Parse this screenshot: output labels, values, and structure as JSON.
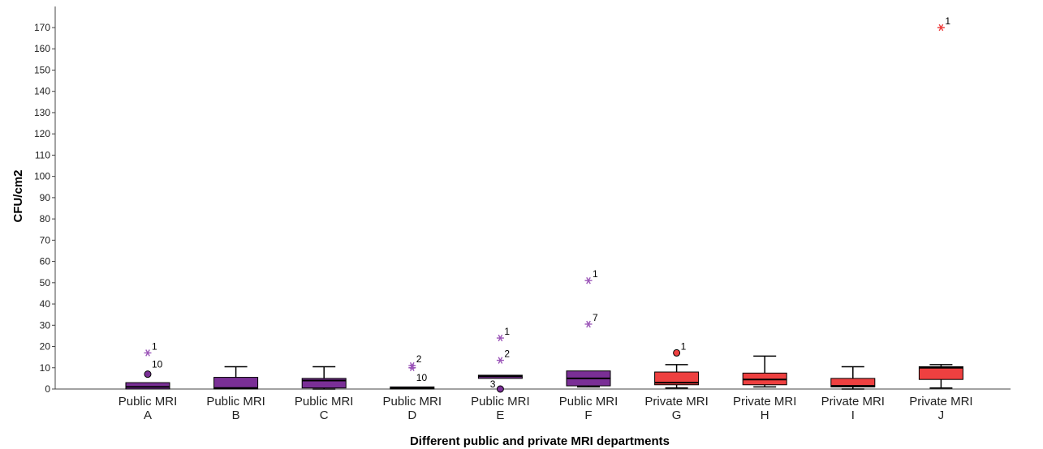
{
  "chart_data": {
    "type": "boxplot",
    "xlabel": "Different public and private MRI departments",
    "ylabel": "CFU/cm2",
    "ylim": [
      0,
      175
    ],
    "yticks": [
      0,
      10,
      20,
      30,
      40,
      50,
      60,
      70,
      80,
      90,
      100,
      110,
      120,
      130,
      140,
      150,
      160,
      170
    ],
    "grid": false,
    "colors": {
      "public": "#7a2f96",
      "private": "#ee4040",
      "public_star": "#9b55b8",
      "private_star": "#ee4040"
    },
    "categories": [
      {
        "line1": "Public MRI",
        "line2": "A",
        "group": "public",
        "min": 0,
        "q1": 0,
        "median": 1,
        "q3": 3,
        "max": 3,
        "outliers": [
          {
            "value": 17,
            "label": "1",
            "shape": "star"
          },
          {
            "value": 7,
            "label": "10",
            "shape": "circle"
          }
        ]
      },
      {
        "line1": "Public MRI",
        "line2": "B",
        "group": "public",
        "min": 0,
        "q1": 0,
        "median": 0.5,
        "q3": 5.5,
        "max": 10.5,
        "outliers": []
      },
      {
        "line1": "Public MRI",
        "line2": "C",
        "group": "public",
        "min": 0,
        "q1": 0.5,
        "median": 4,
        "q3": 5,
        "max": 10.5,
        "outliers": []
      },
      {
        "line1": "Public MRI",
        "line2": "D",
        "group": "public",
        "min": 0,
        "q1": 0,
        "median": 0.5,
        "q3": 1,
        "max": 1,
        "outliers": [
          {
            "value": 11,
            "label": "2",
            "shape": "star"
          },
          {
            "value": 10,
            "label": "10",
            "shape": "star"
          }
        ]
      },
      {
        "line1": "Public MRI",
        "line2": "E",
        "group": "public",
        "min": 5,
        "q1": 5,
        "median": 6,
        "q3": 6.5,
        "max": 6.5,
        "outliers": [
          {
            "value": 24,
            "label": "1",
            "shape": "star"
          },
          {
            "value": 13.5,
            "label": "2",
            "shape": "star"
          },
          {
            "value": 0,
            "label": "3",
            "shape": "circle"
          }
        ]
      },
      {
        "line1": "Public MRI",
        "line2": "F",
        "group": "public",
        "min": 1,
        "q1": 1.5,
        "median": 5,
        "q3": 8.5,
        "max": 8.5,
        "outliers": [
          {
            "value": 51,
            "label": "1",
            "shape": "star"
          },
          {
            "value": 30.5,
            "label": "7",
            "shape": "star"
          }
        ]
      },
      {
        "line1": "Private MRI",
        "line2": "G",
        "group": "private",
        "min": 0.5,
        "q1": 2,
        "median": 3,
        "q3": 8,
        "max": 11.5,
        "outliers": [
          {
            "value": 17,
            "label": "1",
            "shape": "circle"
          }
        ]
      },
      {
        "line1": "Private MRI",
        "line2": "H",
        "group": "private",
        "min": 1,
        "q1": 2,
        "median": 4.5,
        "q3": 7.5,
        "max": 15.5,
        "outliers": []
      },
      {
        "line1": "Private MRI",
        "line2": "I",
        "group": "private",
        "min": 0,
        "q1": 1,
        "median": 1.5,
        "q3": 5,
        "max": 10.5,
        "outliers": []
      },
      {
        "line1": "Private MRI",
        "line2": "J",
        "group": "private",
        "min": 0.5,
        "q1": 4.5,
        "median": 10,
        "q3": 10.5,
        "max": 11.5,
        "outliers": [
          {
            "value": 170,
            "label": "1",
            "shape": "star"
          }
        ]
      }
    ]
  }
}
